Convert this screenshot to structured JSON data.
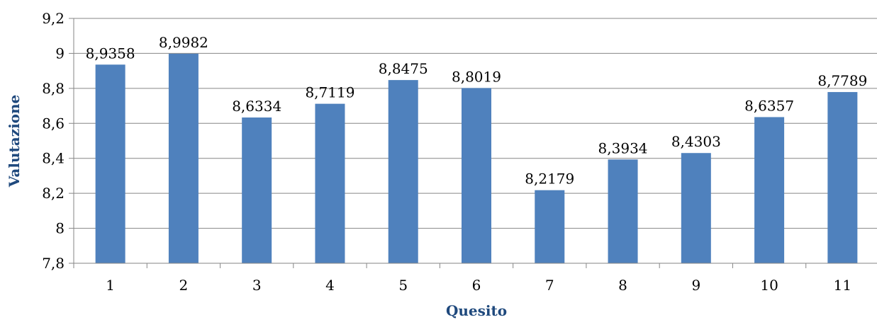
{
  "chart_data": {
    "type": "bar",
    "title": "",
    "xlabel": "Quesito",
    "ylabel": "Valutazione",
    "categories": [
      "1",
      "2",
      "3",
      "4",
      "5",
      "6",
      "7",
      "8",
      "9",
      "10",
      "11"
    ],
    "values": [
      8.9358,
      8.9982,
      8.6334,
      8.7119,
      8.8475,
      8.8019,
      8.2179,
      8.3934,
      8.4303,
      8.6357,
      8.7789
    ],
    "value_labels": [
      "8,9358",
      "8,9982",
      "8,6334",
      "8,7119",
      "8,8475",
      "8,8019",
      "8,2179",
      "8,3934",
      "8,4303",
      "8,6357",
      "8,7789"
    ],
    "ylim": [
      7.8,
      9.2
    ],
    "yticks": [
      7.8,
      8,
      8.2,
      8.4,
      8.6,
      8.8,
      9,
      9.2
    ],
    "ytick_labels": [
      "7,8",
      "8",
      "8,2",
      "8,4",
      "8,6",
      "8,8",
      "9",
      "9,2"
    ],
    "grid": true,
    "legend": "none",
    "colors": {
      "bar": "#4F81BD",
      "axis_title": "#1F497D",
      "grid": "#868686",
      "axis": "#868686"
    }
  }
}
